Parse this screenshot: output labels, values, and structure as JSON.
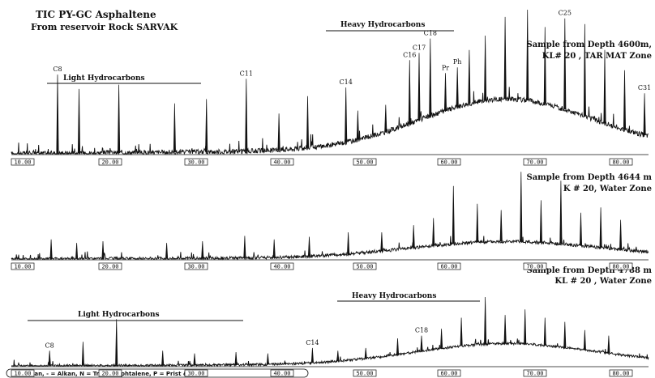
{
  "title": {
    "line1": "TIC PY-GC Asphaltene",
    "line2": "From reservoir Rock SARVAK"
  },
  "legend": "C = Alkan, - = Alkan, N = Trans Naphtalene, P = Prist & PHY",
  "chart_data": [
    {
      "type": "line",
      "id": "panel1",
      "sample_line1": "Sample from Depth 4600m,",
      "sample_line2": "KL# 20 , TAR MAT Zone",
      "annotations": {
        "light": "Light Hydrocarbons",
        "heavy": "Heavy Hydrocarbons"
      },
      "x_ticks": [
        "10.00",
        "20.00",
        "30.00",
        "40.00",
        "50.00",
        "60.00",
        "70.00",
        "80.00"
      ],
      "xlim": [
        0,
        80
      ],
      "peaks": [
        {
          "x": 5.8,
          "h": 0.55,
          "label": "C8"
        },
        {
          "x": 8.5,
          "h": 0.45
        },
        {
          "x": 13.5,
          "h": 0.48
        },
        {
          "x": 20.5,
          "h": 0.35
        },
        {
          "x": 24.5,
          "h": 0.38
        },
        {
          "x": 29.5,
          "h": 0.52,
          "label": "C11"
        },
        {
          "x": 33.6,
          "h": 0.28
        },
        {
          "x": 37.2,
          "h": 0.4
        },
        {
          "x": 42.0,
          "h": 0.46,
          "label": "C14"
        },
        {
          "x": 43.5,
          "h": 0.3
        },
        {
          "x": 47.0,
          "h": 0.34
        },
        {
          "x": 50.0,
          "h": 0.65,
          "label": "C16"
        },
        {
          "x": 51.2,
          "h": 0.7,
          "label": "C17"
        },
        {
          "x": 52.6,
          "h": 0.8,
          "label": "C18"
        },
        {
          "x": 54.5,
          "h": 0.56,
          "label": "Pr"
        },
        {
          "x": 56.0,
          "h": 0.6,
          "label": "Ph"
        },
        {
          "x": 57.5,
          "h": 0.72
        },
        {
          "x": 59.5,
          "h": 0.82
        },
        {
          "x": 62.0,
          "h": 0.95
        },
        {
          "x": 64.8,
          "h": 1.0
        },
        {
          "x": 67.0,
          "h": 0.88
        },
        {
          "x": 69.5,
          "h": 0.94,
          "label": "C25"
        },
        {
          "x": 72.0,
          "h": 0.9
        },
        {
          "x": 74.5,
          "h": 0.72
        },
        {
          "x": 77.0,
          "h": 0.58
        },
        {
          "x": 79.5,
          "h": 0.42,
          "label": "C31"
        }
      ]
    },
    {
      "type": "line",
      "id": "panel2",
      "sample_line1": "Sample from Depth 4644 m",
      "sample_line2": "K # 20, Water Zone",
      "x_ticks": [
        "10.00",
        "20.00",
        "30.00",
        "40.00",
        "50.00",
        "60.00",
        "70.00",
        "80.00"
      ],
      "xlim": [
        0,
        80
      ],
      "peaks": [
        {
          "x": 5.0,
          "h": 0.22
        },
        {
          "x": 8.2,
          "h": 0.18
        },
        {
          "x": 11.5,
          "h": 0.2
        },
        {
          "x": 19.5,
          "h": 0.18
        },
        {
          "x": 24.0,
          "h": 0.2
        },
        {
          "x": 29.3,
          "h": 0.26
        },
        {
          "x": 33.0,
          "h": 0.22
        },
        {
          "x": 37.4,
          "h": 0.25
        },
        {
          "x": 42.3,
          "h": 0.3
        },
        {
          "x": 46.5,
          "h": 0.3
        },
        {
          "x": 50.5,
          "h": 0.38
        },
        {
          "x": 53.0,
          "h": 0.46
        },
        {
          "x": 55.5,
          "h": 0.82
        },
        {
          "x": 58.5,
          "h": 0.62
        },
        {
          "x": 61.5,
          "h": 0.55
        },
        {
          "x": 64.0,
          "h": 0.98
        },
        {
          "x": 66.5,
          "h": 0.66
        },
        {
          "x": 69.0,
          "h": 0.88
        },
        {
          "x": 71.5,
          "h": 0.52
        },
        {
          "x": 74.0,
          "h": 0.58
        },
        {
          "x": 76.5,
          "h": 0.44
        }
      ]
    },
    {
      "type": "line",
      "id": "panel3",
      "sample_line1": "Sample from Depth 4788 m",
      "sample_line2": "KL # 20 , Water Zone",
      "annotations": {
        "light": "Light Hydrocarbons",
        "heavy": "Heavy Hydrocarbons"
      },
      "x_ticks": [
        "10.00",
        "20.00",
        "30.00",
        "40.00",
        "50.00",
        "60.00",
        "70.00",
        "80.00"
      ],
      "xlim": [
        0,
        80
      ],
      "peaks": [
        {
          "x": 4.8,
          "h": 0.22,
          "label": "C8"
        },
        {
          "x": 9.0,
          "h": 0.35
        },
        {
          "x": 13.2,
          "h": 0.68
        },
        {
          "x": 19.0,
          "h": 0.22
        },
        {
          "x": 23.0,
          "h": 0.18
        },
        {
          "x": 28.2,
          "h": 0.2
        },
        {
          "x": 32.2,
          "h": 0.18
        },
        {
          "x": 37.8,
          "h": 0.26,
          "label": "C14"
        },
        {
          "x": 41.0,
          "h": 0.22
        },
        {
          "x": 44.5,
          "h": 0.26
        },
        {
          "x": 48.5,
          "h": 0.4
        },
        {
          "x": 51.5,
          "h": 0.44,
          "label": "C18"
        },
        {
          "x": 54.0,
          "h": 0.54
        },
        {
          "x": 56.5,
          "h": 0.7
        },
        {
          "x": 59.5,
          "h": 1.0
        },
        {
          "x": 62.0,
          "h": 0.74
        },
        {
          "x": 64.5,
          "h": 0.82
        },
        {
          "x": 67.0,
          "h": 0.7
        },
        {
          "x": 69.5,
          "h": 0.64
        },
        {
          "x": 72.0,
          "h": 0.52
        },
        {
          "x": 75.0,
          "h": 0.44
        }
      ]
    }
  ]
}
